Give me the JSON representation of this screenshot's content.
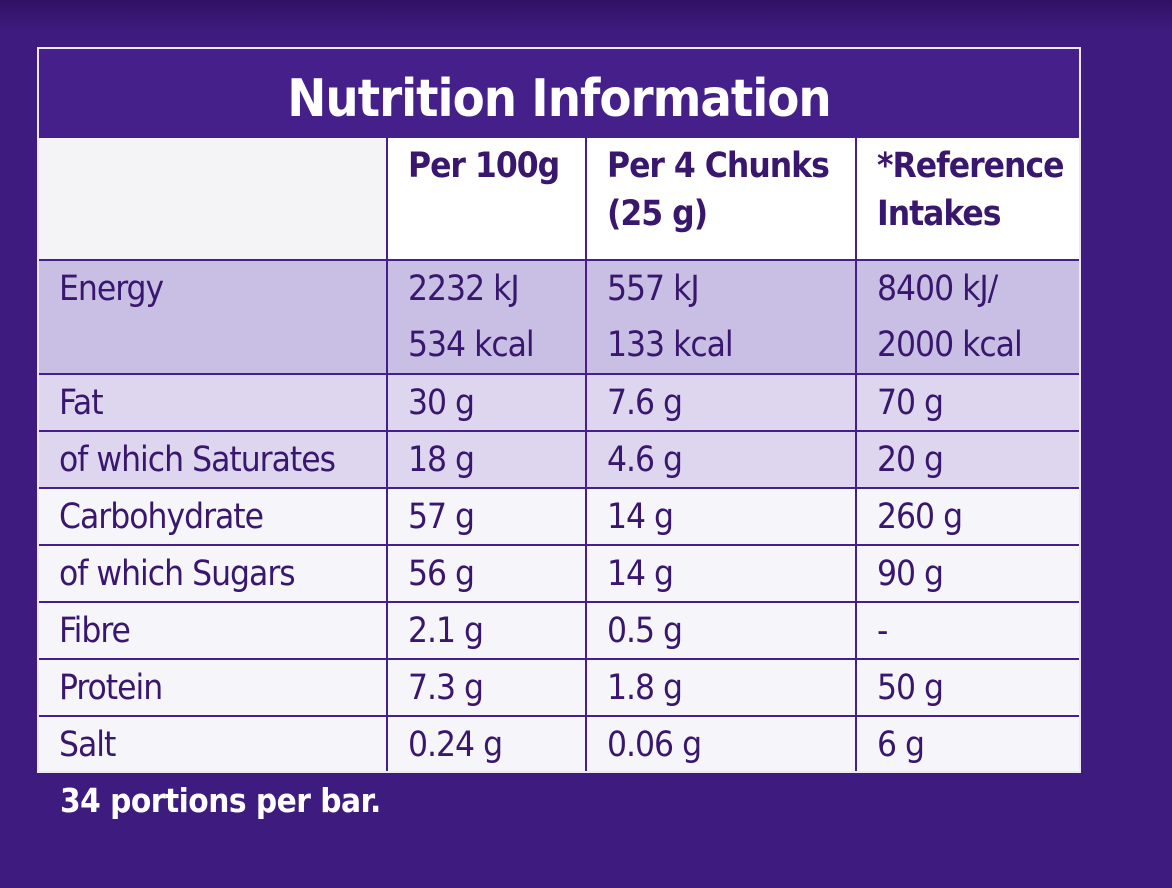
{
  "title": "Nutrition Information",
  "columns": [
    "",
    "Per 100g",
    "Per 4 Chunks\n(25 g)",
    "*Reference\nIntakes"
  ],
  "columns_lines": {
    "per100": "Per 100g",
    "chunks_l1": "Per 4 Chunks",
    "chunks_l2": "(25 g)",
    "ri_l1": "*Reference",
    "ri_l2": "Intakes"
  },
  "energy": {
    "label": "Energy",
    "per100_kj": "2232 kJ",
    "per100_kcal": "534 kcal",
    "chunks_kj": "557 kJ",
    "chunks_kcal": "133 kcal",
    "ri_kj": "8400 kJ/",
    "ri_kcal": "2000 kcal"
  },
  "rows": [
    {
      "label": "Fat",
      "per100": "30 g",
      "chunks": "7.6 g",
      "ri": "70 g"
    },
    {
      "label": "of which Saturates",
      "per100": "18 g",
      "chunks": "4.6 g",
      "ri": "20 g"
    },
    {
      "label": "Carbohydrate",
      "per100": "57 g",
      "chunks": "14 g",
      "ri": "260 g"
    },
    {
      "label": "of which Sugars",
      "per100": "56 g",
      "chunks": "14 g",
      "ri": "90 g"
    },
    {
      "label": "Fibre",
      "per100": "2.1 g",
      "chunks": "0.5 g",
      "ri": "-"
    },
    {
      "label": "Protein",
      "per100": "7.3 g",
      "chunks": "1.8 g",
      "ri": "50 g"
    },
    {
      "label": "Salt",
      "per100": "0.24 g",
      "chunks": "0.06 g",
      "ri": "6 g"
    }
  ],
  "footnote": "34 portions per bar.",
  "colors": {
    "background": "#3e1b7e",
    "title_bar": "#46208a",
    "energy_row": "#c9bfe4",
    "shaded_row": "#ddd6ee",
    "plain_row": "#f6f5f9",
    "text": "#3a176e"
  }
}
